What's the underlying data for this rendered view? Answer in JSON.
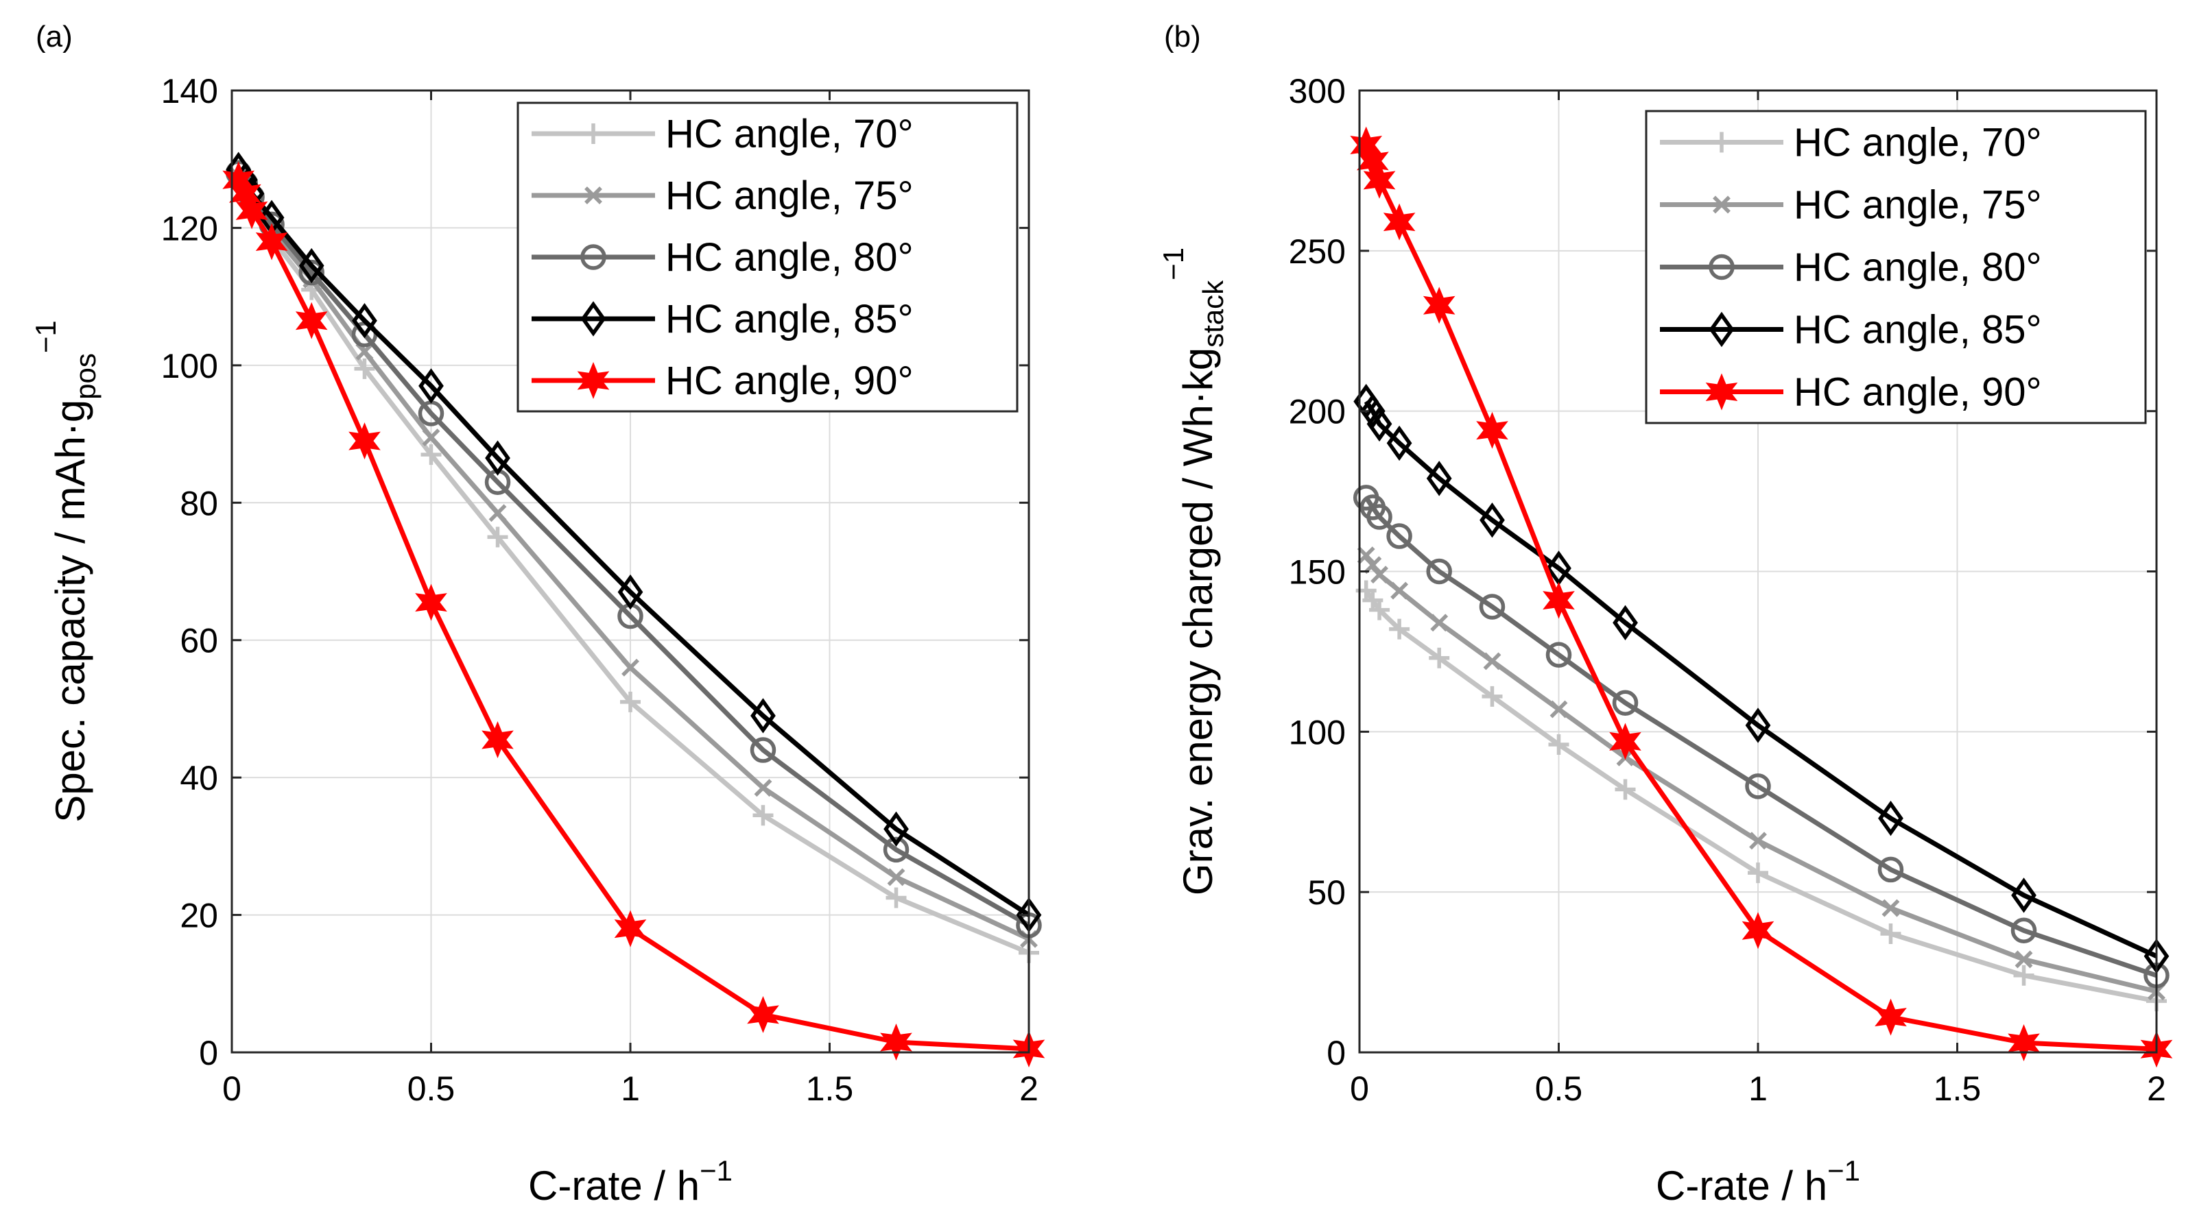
{
  "figure": {
    "panel_a_label": "(a)",
    "panel_b_label": "(b)"
  },
  "chart_data": [
    {
      "type": "line",
      "panel": "(a)",
      "xlabel": "C-rate / h",
      "xlabel_sup": "−1",
      "ylabel": "Spec. capacity / mAh·g",
      "ylabel_sub": "pos",
      "ylabel_sup": "−1",
      "xlim": [
        0,
        2
      ],
      "ylim": [
        0,
        140
      ],
      "xticks": [
        0,
        0.5,
        1,
        1.5,
        2
      ],
      "xtick_labels": [
        "0",
        "0.5",
        "1",
        "1.5",
        "2"
      ],
      "yticks": [
        0,
        20,
        40,
        60,
        80,
        100,
        120,
        140
      ],
      "ytick_labels": [
        "0",
        "20",
        "40",
        "60",
        "80",
        "100",
        "120",
        "140"
      ],
      "grid": true,
      "legend_position": "top-right",
      "x": [
        0.0167,
        0.0333,
        0.05,
        0.1,
        0.2,
        0.333,
        0.5,
        0.667,
        1,
        1.333,
        1.667,
        2
      ],
      "series": [
        {
          "name": "HC angle, 70°",
          "color": "#c3c3c3",
          "marker": "plus",
          "values": [
            127.5,
            125.5,
            123,
            118.5,
            111,
            99.5,
            87,
            75,
            51,
            34.5,
            22.5,
            14.5
          ]
        },
        {
          "name": "HC angle, 75°",
          "color": "#9a9a9a",
          "marker": "cross",
          "values": [
            127.5,
            125.5,
            123.5,
            119.5,
            112.5,
            102,
            89.5,
            78.5,
            56,
            38.5,
            25.5,
            16.5
          ]
        },
        {
          "name": "HC angle, 80°",
          "color": "#6b6b6b",
          "marker": "circle",
          "values": [
            128,
            126.5,
            124.5,
            120.5,
            113.5,
            104.5,
            93,
            83,
            63.5,
            44,
            29.5,
            18.5
          ]
        },
        {
          "name": "HC angle, 85°",
          "color": "#000000",
          "marker": "diamond",
          "values": [
            128.5,
            127,
            125,
            121.5,
            114.5,
            106.5,
            97,
            86.5,
            67,
            49,
            32.5,
            20
          ]
        },
        {
          "name": "HC angle, 90°",
          "color": "#ff0000",
          "marker": "star",
          "values": [
            127,
            125,
            122.5,
            118,
            106.5,
            89,
            65.5,
            45.5,
            18,
            5.5,
            1.5,
            0.5
          ]
        }
      ]
    },
    {
      "type": "line",
      "panel": "(b)",
      "xlabel": "C-rate / h",
      "xlabel_sup": "−1",
      "ylabel": "Grav. energy charged / Wh·kg",
      "ylabel_sub": "stack",
      "ylabel_sup": "−1",
      "xlim": [
        0,
        2
      ],
      "ylim": [
        0,
        300
      ],
      "xticks": [
        0,
        0.5,
        1,
        1.5,
        2
      ],
      "xtick_labels": [
        "0",
        "0.5",
        "1",
        "1.5",
        "2"
      ],
      "yticks": [
        0,
        50,
        100,
        150,
        200,
        250,
        300
      ],
      "ytick_labels": [
        "0",
        "50",
        "100",
        "150",
        "200",
        "250",
        "300"
      ],
      "grid": true,
      "legend_position": "top-right",
      "x": [
        0.0167,
        0.0333,
        0.05,
        0.1,
        0.2,
        0.333,
        0.5,
        0.667,
        1,
        1.333,
        1.667,
        2
      ],
      "series": [
        {
          "name": "HC angle, 70°",
          "color": "#c3c3c3",
          "marker": "plus",
          "values": [
            144,
            141,
            138,
            132,
            123,
            111,
            96,
            82,
            56,
            37,
            24,
            16
          ]
        },
        {
          "name": "HC angle, 75°",
          "color": "#9a9a9a",
          "marker": "cross",
          "values": [
            155,
            152,
            149,
            144,
            134,
            122,
            107,
            92,
            66,
            45,
            29,
            19
          ]
        },
        {
          "name": "HC angle, 80°",
          "color": "#6b6b6b",
          "marker": "circle",
          "values": [
            173,
            170,
            167,
            161,
            150,
            139,
            124,
            109,
            83,
            57,
            38,
            24
          ]
        },
        {
          "name": "HC angle, 85°",
          "color": "#000000",
          "marker": "diamond",
          "values": [
            203,
            200,
            196,
            190,
            179,
            166,
            151,
            134,
            102,
            73,
            49,
            30
          ]
        },
        {
          "name": "HC angle, 90°",
          "color": "#ff0000",
          "marker": "star",
          "values": [
            283,
            278,
            272,
            259,
            233,
            194,
            141,
            97,
            38,
            11,
            3,
            1
          ]
        }
      ]
    }
  ]
}
